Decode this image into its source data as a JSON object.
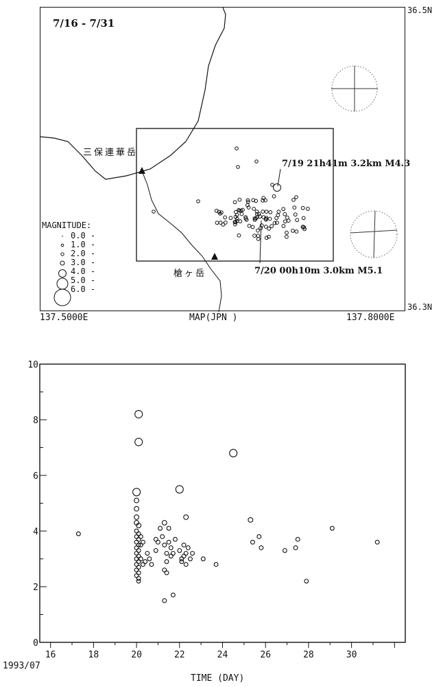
{
  "map": {
    "title": "7/16 - 7/31",
    "lat_top": "36.5N",
    "lat_bottom": "36.3N",
    "lon_left": "137.5000E",
    "lon_right": "137.8000E",
    "map_label": "MAP(JPN )",
    "peak_north": "三保連華岳",
    "peak_south": "槍ヶ岳",
    "event1": "7/19 21h41m  3.2km M4.3",
    "event2": "7/20 00h10m  3.0km M5.1",
    "legend_title": "MAGNITUDE:",
    "legend": [
      "0.0 -",
      "1.0 -",
      "2.0 -",
      "3.0 -",
      "4.0 -",
      "5.0 -",
      "6.0 -"
    ]
  },
  "chart_data": {
    "type": "scatter",
    "title": "",
    "xlabel": "TIME (DAY)",
    "ylabel": "",
    "origin_label": "1993/07",
    "xlim": [
      15.5,
      32.5
    ],
    "ylim": [
      0,
      10
    ],
    "xticks": [
      "16",
      "18",
      "20",
      "22",
      "24",
      "26",
      "28",
      "30"
    ],
    "yticks": [
      "0",
      "2",
      "4",
      "6",
      "8",
      "10"
    ],
    "series": [
      {
        "points": [
          [
            17.3,
            3.9
          ],
          [
            20.1,
            8.2
          ],
          [
            20.1,
            7.2
          ],
          [
            20.0,
            5.4
          ],
          [
            20.0,
            5.1
          ],
          [
            20.0,
            4.8
          ],
          [
            20.0,
            4.5
          ],
          [
            20.0,
            4.3
          ],
          [
            20.1,
            4.2
          ],
          [
            20.0,
            4.0
          ],
          [
            20.1,
            3.9
          ],
          [
            20.0,
            3.8
          ],
          [
            20.1,
            3.7
          ],
          [
            20.0,
            3.6
          ],
          [
            20.1,
            3.5
          ],
          [
            20.0,
            3.4
          ],
          [
            20.1,
            3.3
          ],
          [
            20.0,
            3.2
          ],
          [
            20.1,
            3.1
          ],
          [
            20.0,
            3.0
          ],
          [
            20.1,
            2.9
          ],
          [
            20.0,
            2.8
          ],
          [
            20.1,
            2.7
          ],
          [
            20.0,
            2.6
          ],
          [
            20.1,
            2.5
          ],
          [
            20.0,
            2.4
          ],
          [
            20.1,
            2.3
          ],
          [
            20.1,
            2.2
          ],
          [
            20.2,
            3.8
          ],
          [
            20.2,
            3.5
          ],
          [
            20.2,
            3.0
          ],
          [
            20.3,
            3.6
          ],
          [
            20.3,
            2.8
          ],
          [
            20.4,
            2.9
          ],
          [
            20.5,
            3.2
          ],
          [
            20.6,
            3.0
          ],
          [
            20.7,
            2.8
          ],
          [
            20.9,
            3.7
          ],
          [
            20.9,
            3.3
          ],
          [
            21.0,
            3.6
          ],
          [
            21.1,
            4.1
          ],
          [
            21.2,
            3.8
          ],
          [
            21.3,
            4.3
          ],
          [
            21.3,
            3.5
          ],
          [
            21.4,
            3.2
          ],
          [
            21.4,
            2.9
          ],
          [
            21.5,
            3.6
          ],
          [
            21.5,
            4.1
          ],
          [
            21.6,
            3.4
          ],
          [
            21.6,
            3.1
          ],
          [
            21.7,
            3.2
          ],
          [
            21.8,
            3.7
          ],
          [
            21.3,
            2.6
          ],
          [
            21.4,
            2.5
          ],
          [
            21.3,
            1.5
          ],
          [
            21.7,
            1.7
          ],
          [
            22.0,
            5.5
          ],
          [
            22.0,
            3.3
          ],
          [
            22.1,
            3.0
          ],
          [
            22.1,
            2.9
          ],
          [
            22.2,
            3.5
          ],
          [
            22.2,
            3.1
          ],
          [
            22.3,
            3.2
          ],
          [
            22.3,
            4.5
          ],
          [
            22.3,
            2.8
          ],
          [
            22.4,
            3.4
          ],
          [
            22.5,
            3.0
          ],
          [
            22.6,
            3.2
          ],
          [
            23.1,
            3.0
          ],
          [
            23.7,
            2.8
          ],
          [
            24.5,
            6.8
          ],
          [
            25.3,
            4.4
          ],
          [
            25.4,
            3.6
          ],
          [
            25.7,
            3.8
          ],
          [
            25.8,
            3.4
          ],
          [
            26.9,
            3.3
          ],
          [
            27.4,
            3.4
          ],
          [
            27.5,
            3.7
          ],
          [
            27.9,
            2.2
          ],
          [
            29.1,
            4.1
          ],
          [
            31.2,
            3.6
          ]
        ]
      }
    ]
  }
}
